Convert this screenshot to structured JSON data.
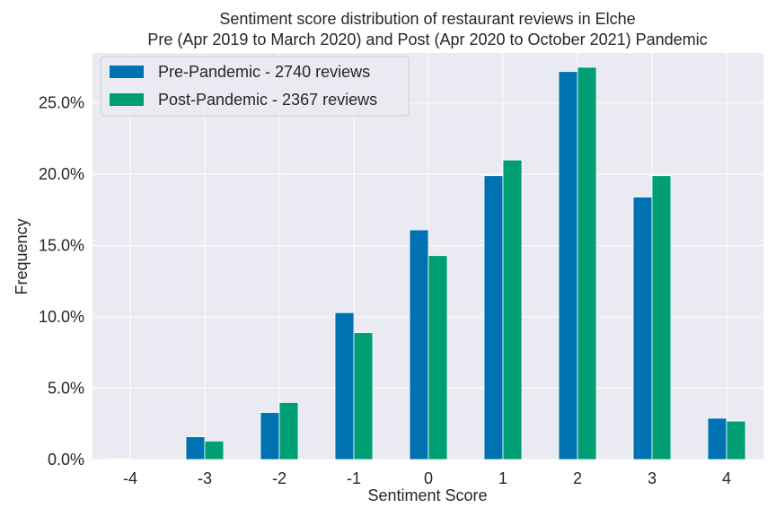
{
  "chart_data": {
    "type": "bar",
    "title_lines": [
      "Sentiment score distribution of restaurant reviews in Elche",
      "Pre (Apr 2019 to March 2020) and Post (Apr 2020 to October 2021) Pandemic"
    ],
    "xlabel": "Sentiment Score",
    "ylabel": "Frequency",
    "categories": [
      "-4",
      "-3",
      "-2",
      "-1",
      "0",
      "1",
      "2",
      "3",
      "4"
    ],
    "y_ticks": [
      "0.0%",
      "5.0%",
      "10.0%",
      "15.0%",
      "20.0%",
      "25.0%"
    ],
    "ylim": [
      0,
      28.5
    ],
    "grid": true,
    "legend_position": "top-left",
    "series": [
      {
        "name": "Pre-Pandemic - 2740 reviews",
        "color": "#0072b2",
        "values": [
          0.05,
          1.6,
          3.3,
          10.3,
          16.1,
          19.9,
          27.2,
          18.4,
          2.9
        ]
      },
      {
        "name": "Post-Pandemic - 2367 reviews",
        "color": "#009e73",
        "values": [
          0,
          1.3,
          4.0,
          8.9,
          14.3,
          21.0,
          27.5,
          19.9,
          2.7
        ]
      }
    ]
  }
}
